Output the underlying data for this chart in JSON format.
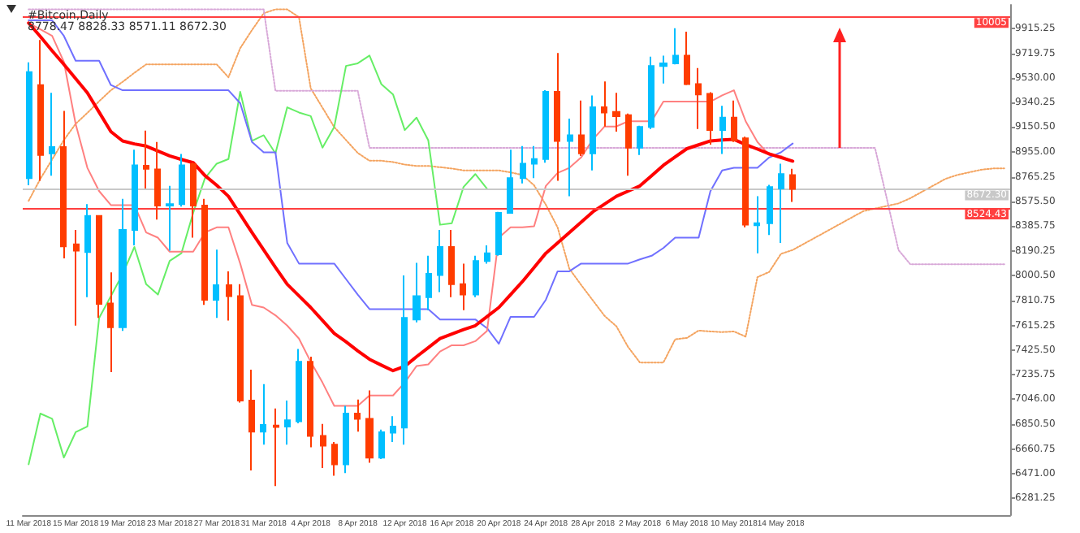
{
  "chart_data": {
    "type": "candlestick",
    "title": "#Bitcoin,Daily",
    "subtitle": "8778.47 8828.33 8571.11 8672.30",
    "categories": [
      "11 Mar 2018",
      null,
      null,
      null,
      "15 Mar 2018",
      null,
      null,
      null,
      "19 Mar 2018",
      null,
      null,
      null,
      "23 Mar 2018",
      null,
      null,
      null,
      "27 Mar 2018",
      null,
      null,
      null,
      "31 Mar 2018",
      null,
      null,
      null,
      "4 Apr 2018",
      null,
      null,
      null,
      "8 Apr 2018",
      null,
      null,
      null,
      "12 Apr 2018",
      null,
      null,
      null,
      "16 Apr 2018",
      null,
      null,
      null,
      "20 Apr 2018",
      null,
      null,
      null,
      "24 Apr 2018",
      null,
      null,
      null,
      "28 Apr 2018",
      null,
      null,
      null,
      "2 May 2018",
      null,
      null,
      null,
      "6 May 2018",
      null,
      null,
      null,
      "10 May 2018",
      null,
      null,
      null,
      "14 May 2018",
      null,
      null,
      null,
      null,
      null,
      null,
      null,
      null,
      null,
      null,
      null,
      null,
      null,
      null,
      null,
      null,
      null,
      null,
      null
    ],
    "ylim": [
      6150,
      10095
    ],
    "yticks": [
      9915.25,
      9719.75,
      {
        "value": 9530,
        "label": "9530.00"
      },
      9340.25,
      {
        "value": 9150.5,
        "label": "9150.50"
      },
      {
        "value": 8955,
        "label": "8955.00"
      },
      8765.25,
      {
        "value": 8575.5,
        "label": "8575.50"
      },
      8385.75,
      8190.25,
      {
        "value": 8000.5,
        "label": "8000.50"
      },
      7810.75,
      7615.25,
      {
        "value": 7425.5,
        "label": "7425.50"
      },
      7235.75,
      {
        "value": 7046,
        "label": "7046.00"
      },
      {
        "value": 6850.5,
        "label": "6850.50"
      },
      6660.75,
      {
        "value": 6471,
        "label": "6471.00"
      },
      6281.25
    ],
    "grid": false,
    "marker": "none",
    "series": [
      {
        "type": "line",
        "color": "#f4a460",
        "line_style": "dotted",
        "values": [
          8580,
          8750,
          8900,
          9050,
          9175,
          9260,
          9350,
          9435,
          9500,
          9570,
          9635,
          9635,
          9635,
          9635,
          9635,
          9635,
          9635,
          9535,
          9760,
          9900,
          10030,
          10060,
          10060,
          10000,
          9450,
          9300,
          9150,
          9050,
          8950,
          8890,
          8890,
          8880,
          8860,
          8850,
          8850,
          8840,
          8830,
          8815,
          8815,
          8815,
          8815,
          8800,
          8780,
          8700,
          8550,
          8375,
          8055,
          7930,
          7810,
          7690,
          7610,
          7450,
          7330,
          7330,
          7330,
          7509,
          7520,
          7577,
          7570,
          7565,
          7570,
          7530,
          7990,
          8030,
          8170,
          8200,
          8250,
          8300,
          8350,
          8400,
          8450,
          8500,
          8520,
          8540,
          8560,
          8600,
          8650,
          8700,
          8750,
          8780,
          8800,
          8820,
          8830,
          8830
        ]
      },
      {
        "type": "line",
        "color": "#d8a8d8",
        "line_style": "dotted",
        "values": [
          10060,
          10060,
          10060,
          10060,
          10060,
          10060,
          10060,
          10060,
          10060,
          10060,
          10060,
          10060,
          10060,
          10060,
          10060,
          10060,
          10060,
          10060,
          10060,
          10060,
          10060,
          9430,
          9430,
          9430,
          9430,
          9430,
          9430,
          9430,
          9430,
          8990,
          8990,
          8990,
          8990,
          8990,
          8990,
          8990,
          8990,
          8990,
          8990,
          8990,
          8990,
          8990,
          8990,
          8990,
          8990,
          8990,
          8990,
          8990,
          8990,
          8990,
          8990,
          8990,
          8990,
          8990,
          8990,
          8990,
          8990,
          8990,
          8990,
          8990,
          8990,
          8990,
          8990,
          8990,
          8990,
          8990,
          8990,
          8990,
          8990,
          8990,
          8990,
          8990,
          8990,
          8600,
          8200,
          8090,
          8090,
          8090,
          8090,
          8090,
          8090,
          8090,
          8090,
          8090
        ]
      },
      {
        "type": "line",
        "color": "#66ee66",
        "line_style": "solid",
        "values": [
          6543,
          6935,
          6895,
          6595,
          6791,
          6835,
          7675,
          7843,
          8015,
          8223,
          7935,
          7855,
          8115,
          8175,
          8487,
          8755,
          8867,
          8903,
          9423,
          9043,
          9087,
          8947,
          9303,
          9263,
          9235,
          8991,
          9151,
          9623,
          9643,
          9703,
          9483,
          9403,
          9127,
          9223,
          9047,
          8395,
          8407,
          8687,
          8787,
          8672.3,
          null,
          null,
          null,
          null,
          null,
          null,
          null,
          null,
          null,
          null,
          null,
          null,
          null,
          null,
          null,
          null,
          null,
          null,
          null,
          null,
          null,
          null,
          null,
          null,
          null,
          null,
          null,
          null,
          null,
          null,
          null,
          null,
          null,
          null,
          null,
          null,
          null,
          null,
          null,
          null,
          null,
          null,
          null,
          null
        ]
      },
      {
        "type": "line",
        "color": "#7070ff",
        "line_style": "solid",
        "values": [
          9975,
          9975,
          9975,
          9855,
          9663,
          9663,
          9663,
          9475,
          9435,
          9435,
          9435,
          9435,
          9435,
          9435,
          9435,
          9435,
          9435,
          9435,
          9335,
          9035,
          8955,
          8955,
          8255,
          8095,
          8095,
          8095,
          8095,
          7975,
          7855,
          7743,
          7743,
          7743,
          7743,
          7743,
          7743,
          7663,
          7663,
          7663,
          7663,
          7595,
          7475,
          7683,
          7683,
          7683,
          7815,
          8035,
          8035,
          8095,
          8095,
          8095,
          8095,
          8095,
          8127,
          8155,
          8215,
          8295,
          8295,
          8295,
          8655,
          8815,
          8835,
          8835,
          8835,
          8915,
          8955,
          9023,
          null,
          null,
          null,
          null,
          null,
          null,
          null,
          null,
          null,
          null,
          null,
          null,
          null,
          null,
          null,
          null,
          null,
          null
        ]
      },
      {
        "type": "line",
        "color": "#ff8080",
        "line_style": "solid",
        "values": [
          9955,
          9905,
          9855,
          9655,
          9175,
          8835,
          8655,
          8547,
          8547,
          8547,
          8335,
          8295,
          8187,
          8187,
          8187,
          8335,
          8375,
          8375,
          8095,
          7775,
          7755,
          7695,
          7615,
          7515,
          7335,
          7175,
          6995,
          6995,
          6995,
          7075,
          7075,
          7075,
          7175,
          7303,
          7315,
          7415,
          7463,
          7463,
          7495,
          7575,
          8295,
          8375,
          8375,
          8383,
          8695,
          8795,
          8835,
          8915,
          9055,
          9155,
          9155,
          9195,
          9195,
          9195,
          9347,
          9347,
          9347,
          9347,
          9347,
          9395,
          9435,
          9195,
          9035,
          8935,
          8927,
          8887,
          null,
          null,
          null,
          null,
          null,
          null,
          null,
          null,
          null,
          null,
          null,
          null,
          null,
          null,
          null,
          null,
          null,
          null
        ]
      },
      {
        "type": "line",
        "color": "#ff0000",
        "line_style": "solid",
        "values": [
          9955,
          9850,
          9740,
          9635,
          9525,
          9415,
          9265,
          9115,
          9043,
          9020,
          9003,
          8965,
          8927,
          8900,
          8875,
          8775,
          8700,
          8615,
          8475,
          8335,
          8200,
          8065,
          7935,
          7845,
          7755,
          7655,
          7555,
          7490,
          7420,
          7355,
          7310,
          7267,
          7300,
          7375,
          7445,
          7515,
          7550,
          7585,
          7615,
          7685,
          7755,
          7855,
          7955,
          8065,
          8175,
          8255,
          8335,
          8415,
          8495,
          8555,
          8615,
          8655,
          8695,
          8775,
          8855,
          8920,
          8983,
          9013,
          9043,
          9050,
          9055,
          9015,
          8980,
          8943,
          8915,
          8887,
          null,
          null,
          null,
          null,
          null,
          null,
          null,
          null,
          null,
          null,
          null,
          null,
          null,
          null,
          null,
          null,
          null,
          null
        ]
      },
      {
        "ohlc": [
          [
            8755,
            9650,
            8700,
            9575
          ],
          [
            9475,
            9823,
            8735,
            8935
          ],
          [
            8947,
            9415,
            8775,
            8995
          ],
          [
            8995,
            9275,
            8135,
            8227
          ],
          [
            8243,
            8355,
            7615,
            8195
          ],
          [
            8183,
            8555,
            7835,
            8463
          ],
          [
            8463,
            8470,
            7675,
            7783
          ],
          [
            7787,
            8027,
            7255,
            7603
          ],
          [
            7603,
            8595,
            7575,
            8355
          ],
          [
            8355,
            8975,
            8235,
            8855
          ],
          [
            8851,
            9123,
            8675,
            8827
          ],
          [
            8823,
            9035,
            8435,
            8543
          ],
          [
            8543,
            8695,
            8195,
            8555
          ],
          [
            8555,
            8943,
            8535,
            8855
          ],
          [
            8863,
            8875,
            8295,
            8543
          ],
          [
            8543,
            8595,
            7775,
            7815
          ],
          [
            7815,
            8203,
            7675,
            7927
          ],
          [
            7927,
            8035,
            7655,
            7843
          ],
          [
            7843,
            7935,
            7020,
            7035
          ],
          [
            7035,
            7275,
            6495,
            6795
          ],
          [
            6795,
            7163,
            6695,
            6847
          ],
          [
            6843,
            6975,
            6375,
            6831
          ],
          [
            6835,
            7035,
            6695,
            6883
          ],
          [
            6875,
            7435,
            6860,
            7335
          ],
          [
            7335,
            7375,
            6675,
            6763
          ],
          [
            6763,
            6855,
            6515,
            6687
          ],
          [
            6695,
            6715,
            6455,
            6543
          ],
          [
            6543,
            6995,
            6475,
            6935
          ],
          [
            6935,
            7043,
            6795,
            6895
          ],
          [
            6895,
            7115,
            6555,
            6595
          ],
          [
            6595,
            6811,
            6583,
            6791
          ],
          [
            6787,
            6915,
            6715,
            6835
          ],
          [
            6827,
            8003,
            6695,
            7675
          ],
          [
            7663,
            8100,
            7640,
            7843
          ],
          [
            7835,
            8155,
            7735,
            8015
          ],
          [
            8007,
            8355,
            7875,
            8223
          ],
          [
            8223,
            8355,
            7835,
            7935
          ],
          [
            7935,
            8095,
            7735,
            7855
          ],
          [
            7855,
            8155,
            7835,
            8115
          ],
          [
            8115,
            8235,
            8095,
            8175
          ],
          [
            8167,
            8495,
            8155,
            8487
          ],
          [
            8487,
            8975,
            8480,
            8755
          ],
          [
            8755,
            9003,
            8715,
            8867
          ],
          [
            8867,
            9003,
            8755,
            8903
          ],
          [
            8903,
            9435,
            8875,
            9423
          ],
          [
            9423,
            9723,
            8735,
            9043
          ],
          [
            9043,
            9215,
            8615,
            9087
          ],
          [
            9087,
            9355,
            8927,
            8947
          ],
          [
            8947,
            9395,
            8815,
            9303
          ],
          [
            9303,
            9503,
            9155,
            9263
          ],
          [
            9267,
            9415,
            9115,
            9235
          ],
          [
            9243,
            9255,
            8775,
            8991
          ],
          [
            8991,
            9160,
            8935,
            9151
          ],
          [
            9151,
            9695,
            9135,
            9623
          ],
          [
            9623,
            9703,
            9487,
            9643
          ],
          [
            9643,
            9915,
            9635,
            9703
          ],
          [
            9703,
            9887,
            9475,
            9483
          ],
          [
            9483,
            9607,
            9135,
            9403
          ],
          [
            9407,
            9420,
            9015,
            9127
          ],
          [
            9127,
            9315,
            8943,
            9223
          ],
          [
            9223,
            9355,
            9035,
            9047
          ],
          [
            9063,
            9075,
            8375,
            8395
          ],
          [
            8391,
            8615,
            8175,
            8407
          ],
          [
            8407,
            8703,
            8315,
            8687
          ],
          [
            8675,
            8867,
            8255,
            8787
          ],
          [
            8778.47,
            8828.33,
            8571.11,
            8672.3
          ],
          null,
          null,
          null,
          null,
          null,
          null,
          null,
          null,
          null,
          null,
          null,
          null,
          null,
          null,
          null,
          null,
          null,
          null
        ],
        "colors": [
          "#00bfff",
          "#ff3c00",
          "#00bfff",
          "#ff3c00",
          "#ff3c00",
          "#00bfff",
          "#ff3c00",
          "#ff3c00",
          "#00bfff",
          "#00bfff",
          "#ff3c00",
          "#ff3c00",
          "#00bfff",
          "#00bfff",
          "#ff3c00",
          "#ff3c00",
          "#00bfff",
          "#ff3c00",
          "#ff3c00",
          "#ff3c00",
          "#00bfff",
          "#ff3c00",
          "#00bfff",
          "#00bfff",
          "#ff3c00",
          "#ff3c00",
          "#ff3c00",
          "#00bfff",
          "#ff3c00",
          "#ff3c00",
          "#00bfff",
          "#00bfff",
          "#00bfff",
          "#00bfff",
          "#00bfff",
          "#00bfff",
          "#ff3c00",
          "#ff3c00",
          "#00bfff",
          "#00bfff",
          "#00bfff",
          "#00bfff",
          "#00bfff",
          "#00bfff",
          "#00bfff",
          "#ff3c00",
          "#00bfff",
          "#ff3c00",
          "#00bfff",
          "#ff3c00",
          "#ff3c00",
          "#ff3c00",
          "#00bfff",
          "#00bfff",
          "#00bfff",
          "#00bfff",
          "#ff3c00",
          "#ff3c00",
          "#ff3c00",
          "#00bfff",
          "#ff3c00",
          "#ff3c00",
          "#00bfff",
          "#00bfff",
          "#00bfff",
          "#ff3c00",
          null,
          null,
          null,
          null,
          null,
          null,
          null,
          null,
          null,
          null,
          null,
          null,
          null,
          null,
          null,
          null,
          null,
          null
        ]
      }
    ],
    "ref_lines": [
      {
        "axis": "y",
        "value": 10005,
        "label": "10005",
        "color": "#ff4040"
      },
      {
        "axis": "y",
        "value": 8672.3,
        "label": "8672.30",
        "color": "#c8c8c8"
      },
      {
        "axis": "y",
        "value": 8524.43,
        "label": "8524.43",
        "color": "#ff4040"
      }
    ]
  }
}
